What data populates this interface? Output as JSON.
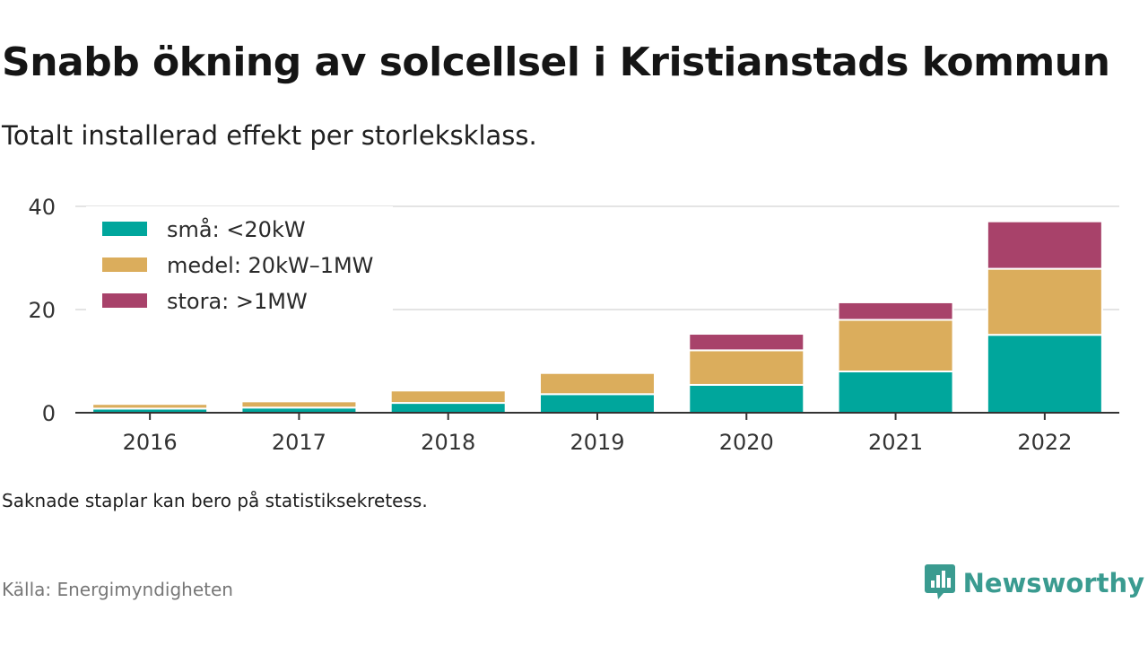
{
  "header": {
    "title": "Snabb ökning av solcellsel i Kristianstads kommun",
    "subtitle": "Totalt installerad effekt per storleksklass."
  },
  "footer": {
    "note": "Saknade staplar kan bero på statistiksekretess.",
    "source": "Källa: Energimyndigheten",
    "brand": "Newsworthy",
    "brand_icon": "bar-chart-speech-bubble-icon",
    "brand_color": "#3a9b90"
  },
  "chart_data": {
    "type": "bar",
    "stacked": true,
    "categories": [
      "2016",
      "2017",
      "2018",
      "2019",
      "2020",
      "2021",
      "2022"
    ],
    "series": [
      {
        "name": "små: <20kW",
        "color": "#00a69c",
        "values": [
          0.8,
          1.0,
          1.9,
          3.6,
          5.4,
          8.0,
          15.1
        ]
      },
      {
        "name": "medel: 20kW–1MW",
        "color": "#dbad5c",
        "values": [
          0.9,
          1.2,
          2.4,
          4.1,
          6.7,
          10.0,
          12.8
        ]
      },
      {
        "name": "stora: >1MW",
        "color": "#a8426a",
        "values": [
          0,
          0,
          0,
          0,
          3.2,
          3.4,
          9.2
        ]
      }
    ],
    "ylim": [
      0,
      40
    ],
    "yticks": [
      "0",
      "20",
      "40"
    ],
    "grid": true,
    "legend_position": "top-left"
  }
}
